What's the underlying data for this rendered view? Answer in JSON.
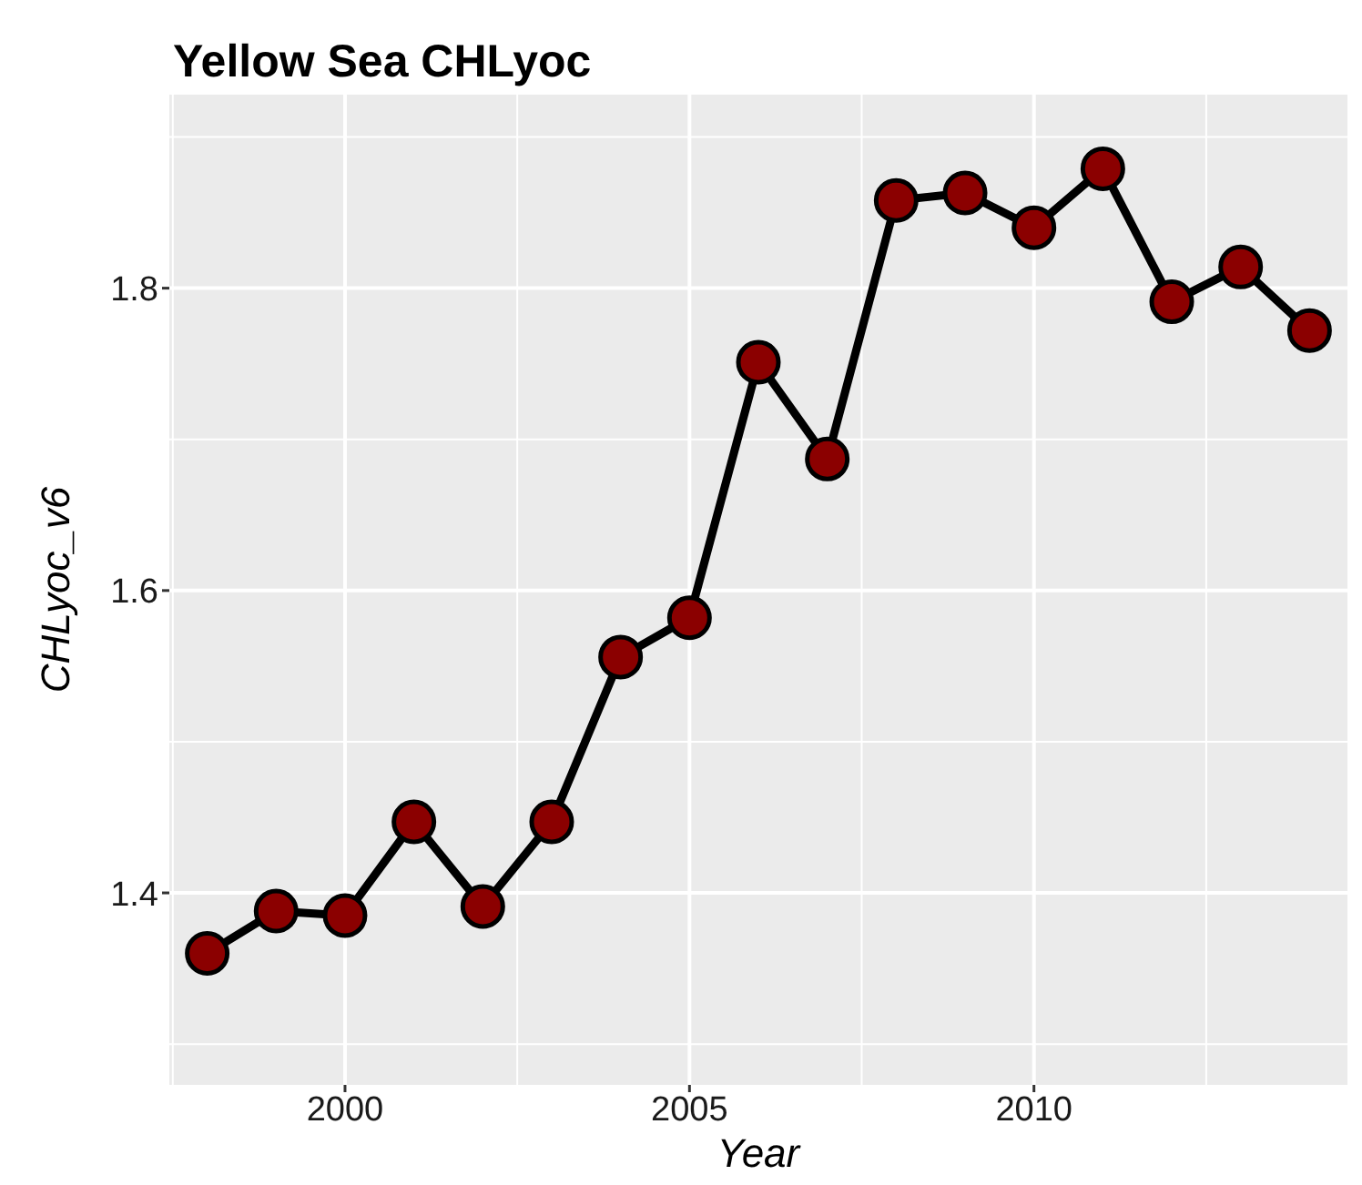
{
  "chart_data": {
    "type": "line",
    "title": "Yellow Sea CHLyoc",
    "xlabel": "Year",
    "ylabel": "CHLyoc_v6",
    "x": [
      1998,
      1999,
      2000,
      2001,
      2002,
      2003,
      2004,
      2005,
      2006,
      2007,
      2008,
      2009,
      2010,
      2011,
      2012,
      2013,
      2014
    ],
    "series": [
      {
        "color": "#000000",
        "colors": [
          "#8b0000",
          "#8b0000",
          "#8b0000",
          "#8b0000",
          "#8b0000",
          "#8b0000",
          "#8b0000",
          "#8b0000",
          "#8b0000",
          "#8b0000",
          "#8b0000",
          "#8b0000",
          "#8b0000",
          "#8b0000",
          "#8b0000",
          "#8b0000",
          "#8b0000"
        ],
        "values": [
          1.36,
          1.388,
          1.385,
          1.447,
          1.391,
          1.447,
          1.556,
          1.582,
          1.751,
          1.687,
          1.858,
          1.863,
          1.84,
          1.879,
          1.791,
          1.814,
          1.772
        ]
      }
    ],
    "xlim": [
      1997.45,
      2014.55
    ],
    "xticks": [
      2000,
      2005,
      2010
    ],
    "ylim": [
      1.273,
      1.928
    ],
    "yticks": [
      1.4,
      1.6,
      1.8
    ],
    "grid": true,
    "marker": "circle",
    "line_style": "solid"
  }
}
